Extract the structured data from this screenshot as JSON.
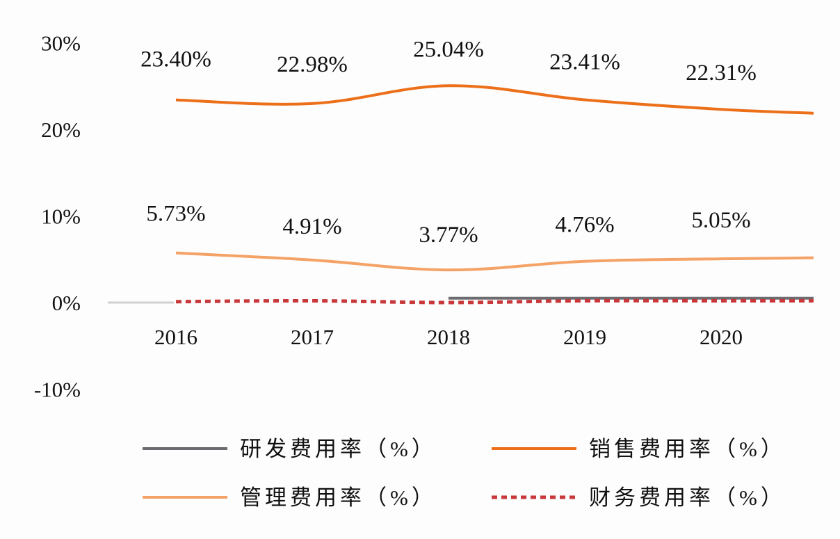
{
  "chart_data": {
    "type": "line",
    "categories": [
      "2016",
      "2017",
      "2018",
      "2019",
      "2020"
    ],
    "ylim": [
      -10,
      30
    ],
    "yticks": [
      "30%",
      "20%",
      "10%",
      "0%",
      "-10%"
    ],
    "ytick_values": [
      30,
      20,
      10,
      0,
      -10
    ],
    "grid": false,
    "legend_position": "bottom",
    "series": [
      {
        "name": "研发费用率（%）",
        "color": "#6b6b70",
        "style": "solid",
        "values": [
          null,
          null,
          0.5,
          0.5,
          0.5
        ],
        "labels": []
      },
      {
        "name": "销售费用率（%）",
        "color": "#ec6f1a",
        "style": "solid",
        "values": [
          23.4,
          22.98,
          25.04,
          23.41,
          22.31
        ],
        "labels": [
          "23.40%",
          "22.98%",
          "25.04%",
          "23.41%",
          "22.31%"
        ]
      },
      {
        "name": "管理费用率（%）",
        "color": "#f4a266",
        "style": "solid",
        "values": [
          5.73,
          4.91,
          3.77,
          4.76,
          5.05
        ],
        "labels": [
          "5.73%",
          "4.91%",
          "3.77%",
          "4.76%",
          "5.05%"
        ]
      },
      {
        "name": "财务费用率（%）",
        "color": "#c8383a",
        "style": "dotted",
        "values": [
          0.1,
          0.2,
          0.0,
          0.2,
          0.2
        ],
        "labels": []
      }
    ]
  }
}
